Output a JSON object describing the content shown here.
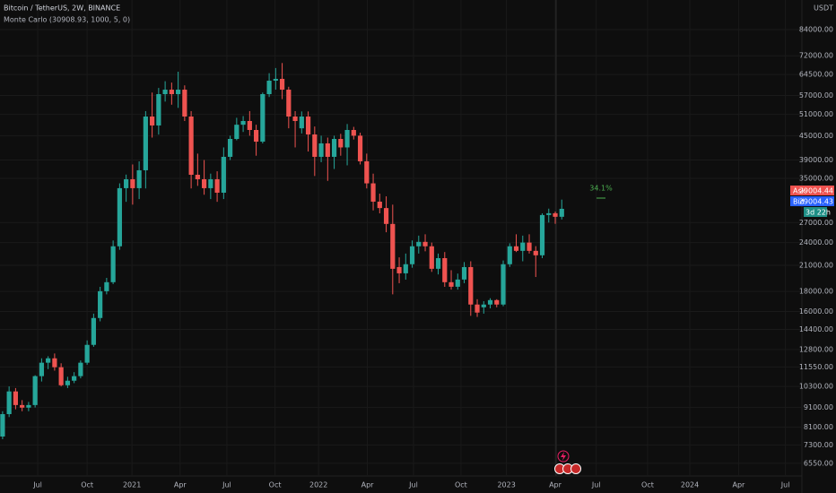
{
  "chart_data": {
    "type": "candlestick",
    "title": "Bitcoin / TetherUS, 2W, BINANCE",
    "subtitle": "Monte Carlo (30908.93, 1000, 5, 0)",
    "currency": "USDT",
    "up_color": "#26a69a",
    "down_color": "#ef5350",
    "log_y": true,
    "grid": true,
    "open": [
      7670,
      8750,
      10000,
      9230,
      9090,
      9230,
      10940,
      11840,
      12150,
      11530,
      10370,
      10650,
      10940,
      11840,
      13150,
      15400,
      18030,
      19010,
      23480,
      33050,
      34830,
      33050,
      36720,
      50370,
      47790,
      57460,
      58990,
      57460,
      58990,
      50370,
      35760,
      34830,
      33050,
      34830,
      32180,
      39740,
      44150,
      48000,
      49060,
      46540,
      43450,
      57460,
      62190,
      62860,
      58990,
      50370,
      47000,
      50370,
      45330,
      39740,
      43010,
      39740,
      44150,
      42000,
      46540,
      45000,
      38710,
      34000,
      30530,
      29400,
      26780,
      20780,
      20030,
      21130,
      23480,
      24100,
      23480,
      20570,
      21900,
      19010,
      18510,
      19310,
      20780,
      16670,
      16400,
      16670,
      17110,
      16670,
      21130,
      23480,
      22860,
      24000,
      22860,
      22270,
      28220,
      28520,
      27930
    ],
    "high": [
      8900,
      10300,
      10200,
      9500,
      9400,
      11000,
      12150,
      12300,
      12500,
      11800,
      10900,
      11200,
      12000,
      13500,
      15800,
      18500,
      19500,
      24300,
      34000,
      35800,
      38000,
      38700,
      52000,
      58000,
      59600,
      62000,
      61500,
      65560,
      60500,
      52000,
      40500,
      39000,
      36000,
      36500,
      42000,
      45000,
      50000,
      50500,
      52000,
      48000,
      58000,
      65000,
      67000,
      69000,
      60000,
      52000,
      51900,
      51900,
      47500,
      45000,
      44500,
      45000,
      45500,
      48200,
      47400,
      45800,
      40500,
      36000,
      32000,
      31500,
      30000,
      22000,
      22500,
      24300,
      25000,
      25200,
      24000,
      22500,
      22700,
      20400,
      20000,
      21400,
      21500,
      17200,
      17000,
      17300,
      17200,
      21600,
      23900,
      25200,
      25000,
      25200,
      23500,
      28500,
      29300,
      28800,
      30900
    ],
    "low": [
      7550,
      8600,
      9000,
      8900,
      8900,
      9100,
      10600,
      11400,
      11300,
      10300,
      10200,
      10500,
      10800,
      11700,
      13000,
      15100,
      17700,
      18800,
      23000,
      30500,
      30000,
      31000,
      33000,
      44500,
      45300,
      55000,
      54000,
      53000,
      49060,
      33000,
      33500,
      31800,
      31000,
      30500,
      31000,
      39000,
      43800,
      46000,
      45000,
      40000,
      43000,
      56500,
      59000,
      55800,
      47000,
      42000,
      45600,
      41000,
      35500,
      38500,
      34500,
      37000,
      40000,
      37800,
      44000,
      38000,
      33000,
      29000,
      28500,
      25500,
      17700,
      18900,
      19300,
      20700,
      22500,
      22800,
      20200,
      19900,
      18500,
      18200,
      18200,
      18900,
      15600,
      15500,
      15800,
      16300,
      16400,
      16500,
      20800,
      22700,
      21500,
      22500,
      19600,
      21900,
      27000,
      26800,
      27500
    ],
    "close": [
      8750,
      10000,
      9230,
      9090,
      9230,
      10940,
      11840,
      12150,
      11530,
      10370,
      10650,
      10940,
      11840,
      13150,
      15400,
      18030,
      19010,
      23480,
      33050,
      34830,
      33050,
      36720,
      50370,
      47790,
      57460,
      58990,
      57460,
      58990,
      50370,
      35760,
      34830,
      33050,
      34830,
      32180,
      39740,
      44150,
      48000,
      49060,
      46540,
      43450,
      57460,
      62190,
      62860,
      58990,
      50370,
      49060,
      50370,
      45330,
      39740,
      43010,
      39740,
      44150,
      42000,
      46540,
      45000,
      38710,
      34000,
      30530,
      29400,
      26780,
      20570,
      20030,
      21130,
      23480,
      24100,
      23480,
      20570,
      21900,
      19010,
      18510,
      19310,
      20780,
      16670,
      15900,
      16670,
      17110,
      16670,
      21130,
      23480,
      22860,
      24000,
      22860,
      22270,
      28220,
      28520,
      27930,
      29270
    ],
    "ylim": [
      6114,
      99960
    ],
    "yticks": [
      {
        "value": 84000,
        "label": "84000.00"
      },
      {
        "value": 72000,
        "label": "72000.00"
      },
      {
        "value": 64500,
        "label": "64500.00"
      },
      {
        "value": 57000,
        "label": "57000.00"
      },
      {
        "value": 51000,
        "label": "51000.00"
      },
      {
        "value": 45000,
        "label": "45000.00"
      },
      {
        "value": 39000,
        "label": "39000.00"
      },
      {
        "value": 35000,
        "label": "35000.00"
      },
      {
        "value": 27000,
        "label": "27000.00"
      },
      {
        "value": 24000,
        "label": "24000.00"
      },
      {
        "value": 21000,
        "label": "21000.00"
      },
      {
        "value": 18000,
        "label": "18000.00"
      },
      {
        "value": 16000,
        "label": "16000.00"
      },
      {
        "value": 14400,
        "label": "14400.00"
      },
      {
        "value": 12800,
        "label": "12800.00"
      },
      {
        "value": 11550,
        "label": "11550.00"
      },
      {
        "value": 10300,
        "label": "10300.00"
      },
      {
        "value": 9100,
        "label": "9100.00"
      },
      {
        "value": 8100,
        "label": "8100.00"
      },
      {
        "value": 7300,
        "label": "7300.00"
      },
      {
        "value": 6550,
        "label": "6550.00"
      }
    ],
    "xlim": [
      -0.4,
      122.8
    ],
    "xticks": [
      {
        "value": 5.4,
        "label": "Jul"
      },
      {
        "value": 13.0,
        "label": "Oct"
      },
      {
        "value": 19.9,
        "label": "2021"
      },
      {
        "value": 27.3,
        "label": "Apr"
      },
      {
        "value": 34.5,
        "label": "Jul"
      },
      {
        "value": 41.9,
        "label": "Oct"
      },
      {
        "value": 48.6,
        "label": "2022"
      },
      {
        "value": 56.1,
        "label": "Apr"
      },
      {
        "value": 63.2,
        "label": "Jul"
      },
      {
        "value": 70.5,
        "label": "Oct"
      },
      {
        "value": 77.5,
        "label": "2023"
      },
      {
        "value": 85.0,
        "label": "Apr"
      },
      {
        "value": 91.3,
        "label": "Jul"
      },
      {
        "value": 99.2,
        "label": "Oct"
      },
      {
        "value": 105.7,
        "label": "2024"
      },
      {
        "value": 113.2,
        "label": "Apr"
      },
      {
        "value": 120.4,
        "label": "Jul"
      }
    ],
    "annotation": "34.1%",
    "ask": {
      "label": "Ask",
      "value": 29004.44
    },
    "bid": {
      "label": "Bid",
      "value": 29004.43
    },
    "countdown": "3d 22h"
  }
}
